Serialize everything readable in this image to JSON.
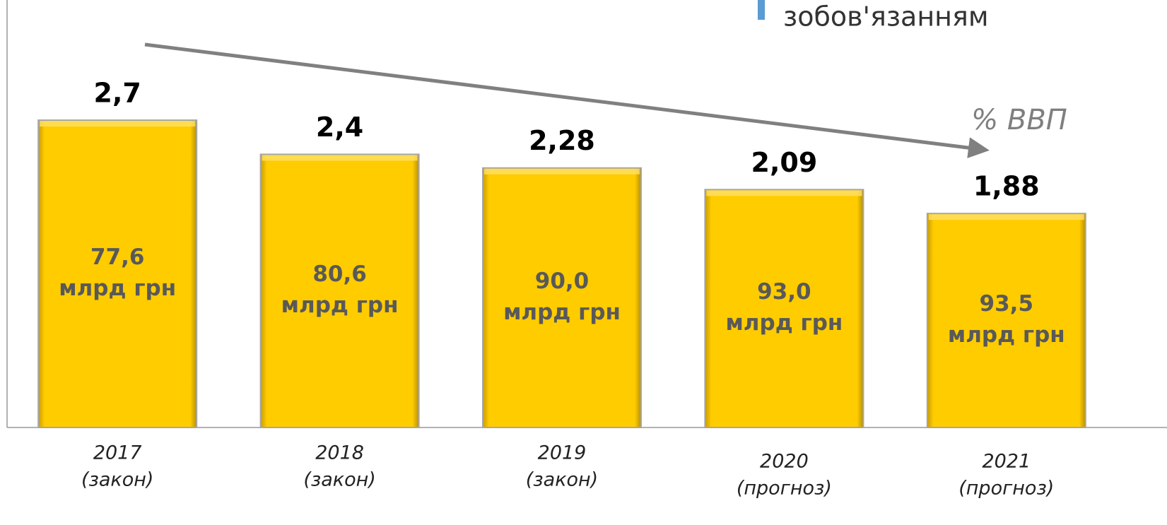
{
  "chart_data": {
    "type": "bar",
    "categories": [
      "2017",
      "2018",
      "2019",
      "2020",
      "2021"
    ],
    "category_notes": [
      "(закон)",
      "(закон)",
      "(закон)",
      "(прогноз)",
      "(прогноз)"
    ],
    "values": [
      2.7,
      2.4,
      2.28,
      2.09,
      1.88
    ],
    "value_labels": [
      "2,7",
      "2,4",
      "2,28",
      "2,09",
      "1,88"
    ],
    "amounts": [
      77.6,
      80.6,
      90.0,
      93.0,
      93.5
    ],
    "amount_labels": [
      "77,6",
      "80,6",
      "90,0",
      "93,0",
      "93,5"
    ],
    "amount_unit": "млрд грн",
    "color": "#ffcc00",
    "ylim": [
      0,
      3.7
    ],
    "annotation": "% ВВП",
    "header_fragment": "зобов'язанням"
  }
}
